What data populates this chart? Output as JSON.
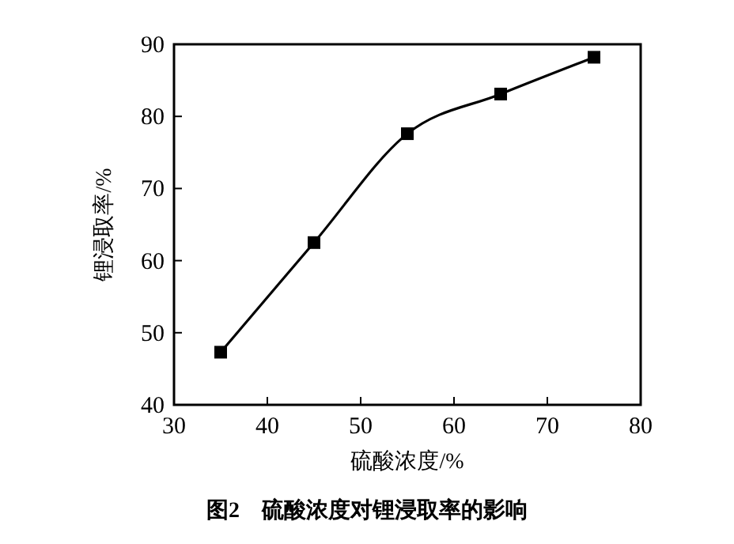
{
  "chart_data": {
    "type": "line",
    "xlabel": "硫酸浓度/%",
    "ylabel": "锂浸取率/%",
    "annotations": [
      "图2　硫酸浓度对锂浸取率的影响"
    ],
    "x": [
      35,
      45,
      55,
      65,
      75
    ],
    "series": [
      {
        "color": "#000000",
        "values": [
          47.3,
          62.5,
          77.6,
          83.1,
          88.2
        ]
      }
    ],
    "xlim": [
      30,
      80
    ],
    "xticks": [
      30,
      40,
      50,
      60,
      70,
      80
    ],
    "ylim": [
      40,
      90
    ],
    "yticks": [
      40,
      50,
      60,
      70,
      80,
      90
    ],
    "marker": "square",
    "line_style": "solid"
  }
}
